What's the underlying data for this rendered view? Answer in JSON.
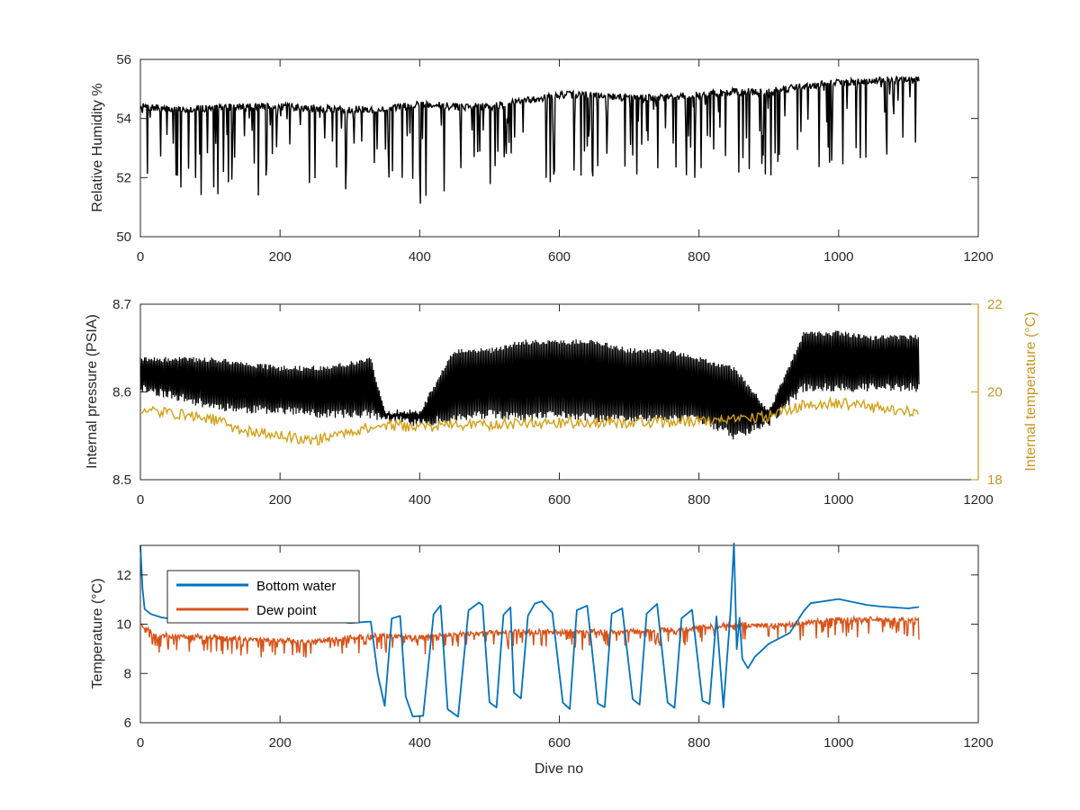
{
  "chart_data": [
    {
      "type": "line",
      "panel": "top",
      "xlabel": "",
      "ylabel": "Relative Humidity %",
      "xlim": [
        0,
        1200
      ],
      "ylim": [
        50,
        56
      ],
      "xticks": [
        "0",
        "200",
        "400",
        "600",
        "800",
        "1000",
        "1200"
      ],
      "yticks": [
        "50",
        "52",
        "54",
        "56"
      ],
      "colors": {
        "series": "#000000"
      },
      "grid": false,
      "series": [
        {
          "name": "",
          "axis": "left",
          "x": [
            0,
            50,
            100,
            150,
            200,
            250,
            300,
            350,
            400,
            450,
            500,
            550,
            600,
            650,
            700,
            750,
            800,
            850,
            900,
            950,
            1000,
            1050,
            1115
          ],
          "y": [
            54.4,
            54.3,
            54.35,
            54.4,
            54.4,
            54.35,
            54.3,
            54.3,
            54.5,
            54.4,
            54.4,
            54.6,
            54.8,
            54.8,
            54.7,
            54.7,
            54.8,
            54.9,
            54.9,
            55.1,
            55.2,
            55.3,
            55.3
          ],
          "dips_min": [
            51.4,
            51.3,
            51.4,
            51.3,
            51.2,
            51.6,
            51.5,
            51.3,
            51.1,
            51.7,
            51.5,
            51.9,
            51.7,
            51.9,
            52.0,
            51.9,
            51.8,
            51.8,
            52.0,
            52.3,
            52.4,
            52.5,
            52.8
          ]
        }
      ]
    },
    {
      "type": "line",
      "panel": "middle",
      "xlabel": "",
      "ylabel": "Internal pressure (PSIA)",
      "ylabel_right": "Internal temperature (°C)",
      "xlim": [
        0,
        1200
      ],
      "ylim": [
        8.5,
        8.7
      ],
      "ylim_right": [
        18,
        22
      ],
      "xticks": [
        "0",
        "200",
        "400",
        "600",
        "800",
        "1000",
        "1200"
      ],
      "yticks": [
        "8.5",
        "8.6",
        "8.7"
      ],
      "yticks_right": [
        "18",
        "20",
        "22"
      ],
      "colors": {
        "pressure": "#000000",
        "temperature": "#D4A017",
        "right_axis": "#C8961E"
      },
      "grid": false,
      "series": [
        {
          "name": "",
          "axis": "left",
          "x": [
            0,
            50,
            100,
            150,
            200,
            250,
            300,
            330,
            350,
            400,
            450,
            500,
            550,
            600,
            650,
            700,
            750,
            800,
            850,
            900,
            950,
            1000,
            1050,
            1115
          ],
          "upper": [
            8.64,
            8.64,
            8.64,
            8.635,
            8.63,
            8.63,
            8.635,
            8.64,
            8.58,
            8.58,
            8.65,
            8.65,
            8.66,
            8.66,
            8.66,
            8.65,
            8.65,
            8.64,
            8.63,
            8.58,
            8.67,
            8.67,
            8.665,
            8.665
          ],
          "lower": [
            8.6,
            8.59,
            8.58,
            8.575,
            8.575,
            8.57,
            8.57,
            8.57,
            8.565,
            8.56,
            8.565,
            8.57,
            8.565,
            8.57,
            8.565,
            8.565,
            8.565,
            8.565,
            8.545,
            8.56,
            8.6,
            8.6,
            8.6,
            8.6
          ]
        },
        {
          "name": "",
          "axis": "right",
          "x": [
            0,
            50,
            100,
            150,
            200,
            250,
            300,
            350,
            400,
            450,
            500,
            550,
            600,
            650,
            700,
            750,
            800,
            850,
            900,
            950,
            1000,
            1050,
            1115
          ],
          "y": [
            19.6,
            19.5,
            19.4,
            19.1,
            19.0,
            18.9,
            19.1,
            19.25,
            19.2,
            19.25,
            19.25,
            19.3,
            19.3,
            19.3,
            19.3,
            19.3,
            19.35,
            19.35,
            19.45,
            19.7,
            19.75,
            19.65,
            19.55
          ]
        }
      ]
    },
    {
      "type": "line",
      "panel": "bottom",
      "xlabel": "Dive no",
      "ylabel": "Temperature (°C)",
      "xlim": [
        0,
        1200
      ],
      "ylim": [
        6,
        13.2
      ],
      "xticks": [
        "0",
        "200",
        "400",
        "600",
        "800",
        "1000",
        "1200"
      ],
      "yticks": [
        "6",
        "8",
        "10",
        "12"
      ],
      "legend": "top-left",
      "colors": {
        "Bottom water": "#0072BD",
        "Dew point": "#D95319"
      },
      "grid": false,
      "series": [
        {
          "name": "Bottom water",
          "x": [
            0,
            3,
            6,
            15,
            30,
            60,
            100,
            150,
            200,
            250,
            300,
            330,
            340,
            350,
            360,
            372,
            380,
            390,
            405,
            420,
            430,
            440,
            455,
            470,
            485,
            490,
            500,
            510,
            520,
            530,
            535,
            545,
            555,
            565,
            575,
            590,
            605,
            615,
            625,
            640,
            655,
            665,
            675,
            690,
            705,
            715,
            725,
            740,
            755,
            765,
            775,
            790,
            805,
            815,
            825,
            835,
            845,
            850,
            854,
            858,
            862,
            870,
            880,
            900,
            930,
            950,
            960,
            1000,
            1040,
            1060,
            1100,
            1115
          ],
          "y": [
            13.2,
            11.5,
            10.6,
            10.4,
            10.3,
            10.2,
            10.2,
            10.2,
            10.2,
            10.2,
            10.1,
            10.1,
            8.0,
            6.7,
            10.2,
            10.3,
            7.0,
            6.3,
            6.3,
            10.4,
            10.8,
            6.6,
            6.3,
            10.6,
            10.9,
            10.8,
            6.8,
            6.6,
            10.4,
            10.7,
            7.2,
            7.0,
            10.4,
            10.8,
            10.9,
            10.5,
            6.8,
            6.6,
            10.6,
            10.8,
            6.8,
            6.6,
            10.4,
            10.7,
            6.9,
            6.7,
            10.4,
            10.8,
            6.8,
            6.6,
            10.3,
            10.6,
            6.9,
            6.8,
            10.3,
            6.6,
            10.5,
            13.3,
            9.0,
            10.3,
            8.6,
            8.2,
            8.7,
            9.2,
            9.7,
            10.5,
            10.9,
            11.0,
            10.8,
            10.7,
            10.7,
            10.7
          ]
        },
        {
          "name": "Dew point",
          "x": [
            0,
            20,
            50,
            100,
            150,
            200,
            250,
            300,
            350,
            400,
            450,
            500,
            550,
            600,
            650,
            700,
            750,
            800,
            850,
            900,
            950,
            1000,
            1050,
            1115
          ],
          "y": [
            10.0,
            9.6,
            9.5,
            9.5,
            9.4,
            9.35,
            9.3,
            9.45,
            9.55,
            9.45,
            9.6,
            9.65,
            9.7,
            9.7,
            9.7,
            9.7,
            9.75,
            9.85,
            10.0,
            9.95,
            10.05,
            10.2,
            10.2,
            10.15
          ],
          "noise_down": 0.7
        }
      ]
    }
  ]
}
